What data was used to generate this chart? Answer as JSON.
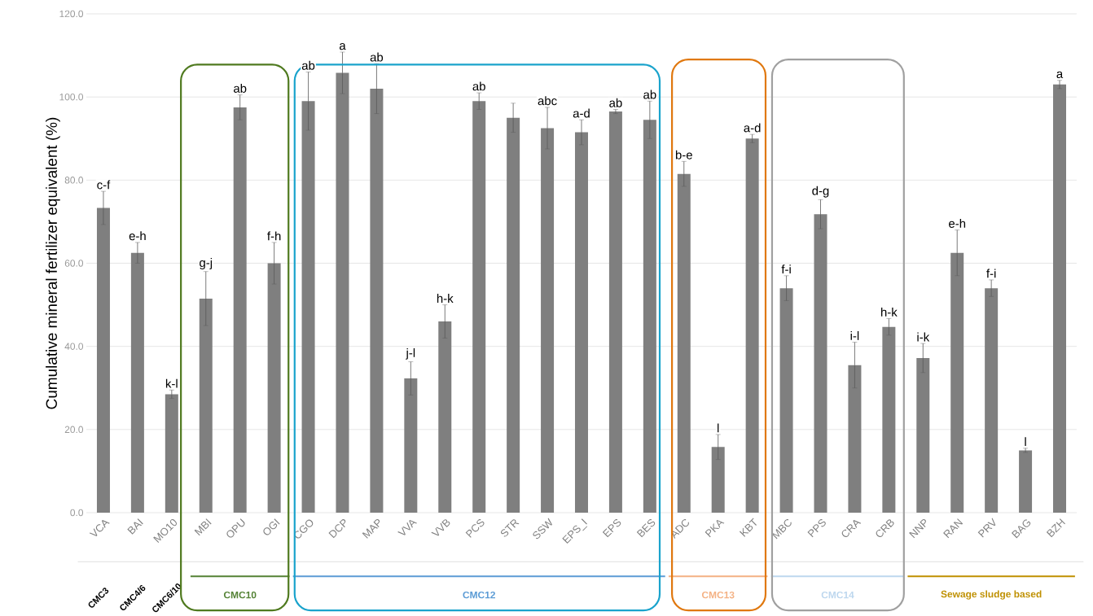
{
  "chart_data": {
    "type": "bar",
    "ylabel": "Cumulative mineral fertilizer equivalent (%)",
    "categories": [
      "VCA",
      "BAI",
      "MO10",
      "MBI",
      "OPU",
      "OGI",
      "CGO",
      "DCP",
      "MAP",
      "VVA",
      "VVB",
      "PCS",
      "STR",
      "SSW",
      "EPS_I",
      "EPS",
      "BES",
      "ADC",
      "PKA",
      "KBT",
      "MBC",
      "PPS",
      "CRA",
      "CRB",
      "NNP",
      "RAN",
      "PRV",
      "BAG",
      "BZH"
    ],
    "values": [
      73.3,
      62.5,
      28.5,
      51.5,
      97.5,
      60,
      99,
      105.8,
      102,
      32.3,
      46,
      99,
      95,
      92.5,
      91.5,
      96.5,
      94.5,
      81.5,
      15.8,
      90,
      54,
      71.8,
      35.5,
      44.7,
      37.2,
      62.5,
      54,
      15,
      103
    ],
    "errors": [
      4,
      2.5,
      1,
      6.5,
      3,
      5,
      7,
      5,
      6,
      4,
      4,
      2,
      3.5,
      5,
      3,
      0.5,
      4.5,
      3,
      3,
      1,
      3,
      3.5,
      5.5,
      2,
      3.5,
      5.5,
      2,
      0.5,
      1
    ],
    "color": "#7f7f7f",
    "ylim": [
      0,
      120
    ],
    "yticks": [
      {
        "value": 0,
        "label": "0.0"
      },
      {
        "value": 20,
        "label": "20.0"
      },
      {
        "value": 40,
        "label": "40.0"
      },
      {
        "value": 60,
        "label": "60.0"
      },
      {
        "value": 80,
        "label": "80.0"
      },
      {
        "value": 100,
        "label": "100.0"
      },
      {
        "value": 120,
        "label": "120.0"
      }
    ],
    "grid": "y",
    "annotations": [
      {
        "text": "c-f",
        "x": "VCA",
        "y": 77.3
      },
      {
        "text": "e-h",
        "x": "BAI",
        "y": 65
      },
      {
        "text": "k-l",
        "x": "MO10",
        "y": 29.5
      },
      {
        "text": "g-j",
        "x": "MBI",
        "y": 58
      },
      {
        "text": "ab",
        "x": "OPU",
        "y": 100.5
      },
      {
        "text": "f-h",
        "x": "OGI",
        "y": 65
      },
      {
        "text": "ab",
        "x": "CGO",
        "y": 106
      },
      {
        "text": "a",
        "x": "DCP",
        "y": 110.8
      },
      {
        "text": "ab",
        "x": "MAP",
        "y": 108
      },
      {
        "text": "j-l",
        "x": "VVA",
        "y": 36.3
      },
      {
        "text": "h-k",
        "x": "VVB",
        "y": 50
      },
      {
        "text": "ab",
        "x": "PCS",
        "y": 101
      },
      {
        "text": "abc",
        "x": "SSW",
        "y": 97.5
      },
      {
        "text": "a-d",
        "x": "EPS_I",
        "y": 94.5
      },
      {
        "text": "ab",
        "x": "EPS",
        "y": 97
      },
      {
        "text": "ab",
        "x": "BES",
        "y": 99
      },
      {
        "text": "b-e",
        "x": "ADC",
        "y": 84.5
      },
      {
        "text": "l",
        "x": "PKA",
        "y": 18.8
      },
      {
        "text": "a-d",
        "x": "KBT",
        "y": 91
      },
      {
        "text": "f-i",
        "x": "MBC",
        "y": 57
      },
      {
        "text": "d-g",
        "x": "PPS",
        "y": 75.3
      },
      {
        "text": "i-l",
        "x": "CRA",
        "y": 41
      },
      {
        "text": "h-k",
        "x": "CRB",
        "y": 46.7
      },
      {
        "text": "i-k",
        "x": "NNP",
        "y": 40.7
      },
      {
        "text": "e-h",
        "x": "RAN",
        "y": 68
      },
      {
        "text": "f-i",
        "x": "PRV",
        "y": 56
      },
      {
        "text": "l",
        "x": "BAG",
        "y": 15.5
      },
      {
        "text": "a",
        "x": "BZH",
        "y": 104
      },
      "CMC3",
      "CMC4/6",
      "CMC6/10",
      "CMC10",
      "CMC12",
      "CMC13",
      "CMC14",
      "Sewage sludge based"
    ]
  }
}
